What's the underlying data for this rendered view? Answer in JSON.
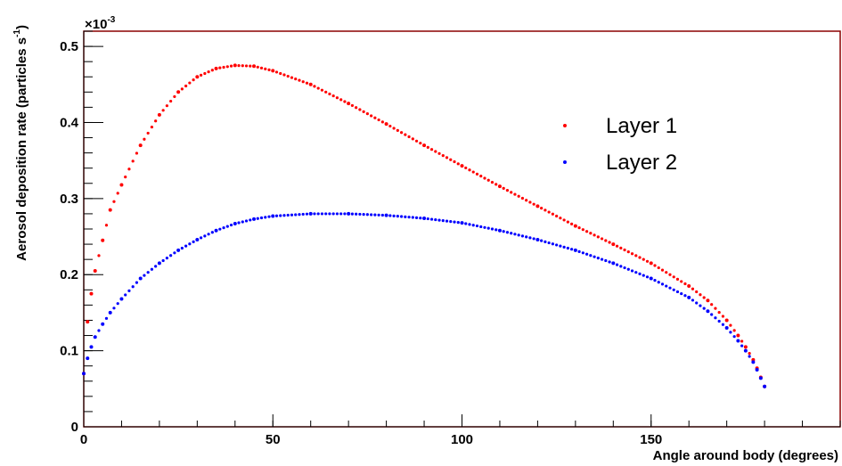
{
  "chart_data": {
    "type": "scatter",
    "title": "",
    "xlabel": "Angle around body (degrees)",
    "ylabel": "Aerosol deposition rate (particles s",
    "ylabel_sup": "-1",
    "ylabel_tail": ")",
    "y_multiplier_base": "×10",
    "y_multiplier_exp": "-3",
    "xlim": [
      0,
      200
    ],
    "ylim": [
      0,
      0.52
    ],
    "x_ticks": [
      0,
      50,
      100,
      150
    ],
    "x_tick_labels": [
      "0",
      "50",
      "100",
      "150"
    ],
    "y_ticks": [
      0,
      0.1,
      0.2,
      0.3,
      0.4,
      0.5
    ],
    "y_tick_labels": [
      "0",
      "0.1",
      "0.2",
      "0.3",
      "0.4",
      "0.5"
    ],
    "grid": false,
    "legend_position": "upper-right",
    "frame_color": "#8b0000",
    "series": [
      {
        "name": "Layer 1",
        "color": "#ff0000",
        "x": [
          0,
          1,
          2,
          3,
          5,
          7,
          10,
          15,
          20,
          25,
          30,
          35,
          40,
          45,
          50,
          60,
          70,
          80,
          90,
          100,
          110,
          120,
          130,
          140,
          150,
          160,
          165,
          170,
          173,
          175,
          177,
          178,
          179,
          180
        ],
        "y": [
          0.07,
          0.138,
          0.175,
          0.205,
          0.245,
          0.285,
          0.318,
          0.37,
          0.41,
          0.44,
          0.46,
          0.471,
          0.475,
          0.474,
          0.468,
          0.45,
          0.425,
          0.398,
          0.37,
          0.343,
          0.316,
          0.29,
          0.264,
          0.24,
          0.215,
          0.185,
          0.166,
          0.14,
          0.12,
          0.105,
          0.088,
          0.077,
          0.065,
          0.053
        ]
      },
      {
        "name": "Layer 2",
        "color": "#0000ff",
        "x": [
          0,
          1,
          2,
          3,
          5,
          7,
          10,
          15,
          20,
          25,
          30,
          35,
          40,
          45,
          50,
          60,
          70,
          80,
          90,
          100,
          110,
          120,
          130,
          140,
          150,
          160,
          165,
          170,
          173,
          175,
          177,
          178,
          179,
          180
        ],
        "y": [
          0.07,
          0.09,
          0.105,
          0.118,
          0.135,
          0.15,
          0.168,
          0.195,
          0.215,
          0.232,
          0.246,
          0.258,
          0.267,
          0.273,
          0.277,
          0.28,
          0.28,
          0.278,
          0.274,
          0.268,
          0.258,
          0.246,
          0.232,
          0.215,
          0.195,
          0.17,
          0.152,
          0.13,
          0.113,
          0.1,
          0.085,
          0.075,
          0.064,
          0.053
        ]
      }
    ]
  }
}
